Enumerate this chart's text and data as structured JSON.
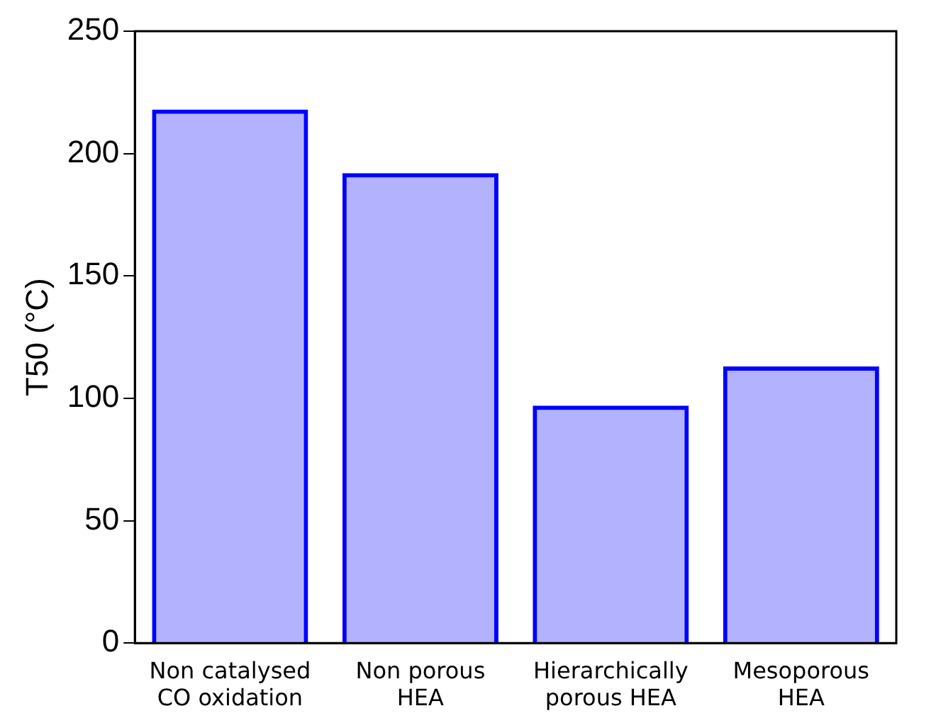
{
  "chart_data": {
    "type": "bar",
    "ylabel": "T50 (°C)",
    "categories": [
      "Non catalysed CO oxidation",
      "Non porous HEA",
      "Hierarchically porous HEA",
      "Mesoporous HEA"
    ],
    "values": [
      218,
      192,
      97,
      113
    ],
    "color": "#0000ff",
    "ylim": [
      0,
      250
    ],
    "yticks": [
      0,
      50,
      100,
      150,
      200,
      250
    ],
    "grid": false,
    "legend": false
  }
}
